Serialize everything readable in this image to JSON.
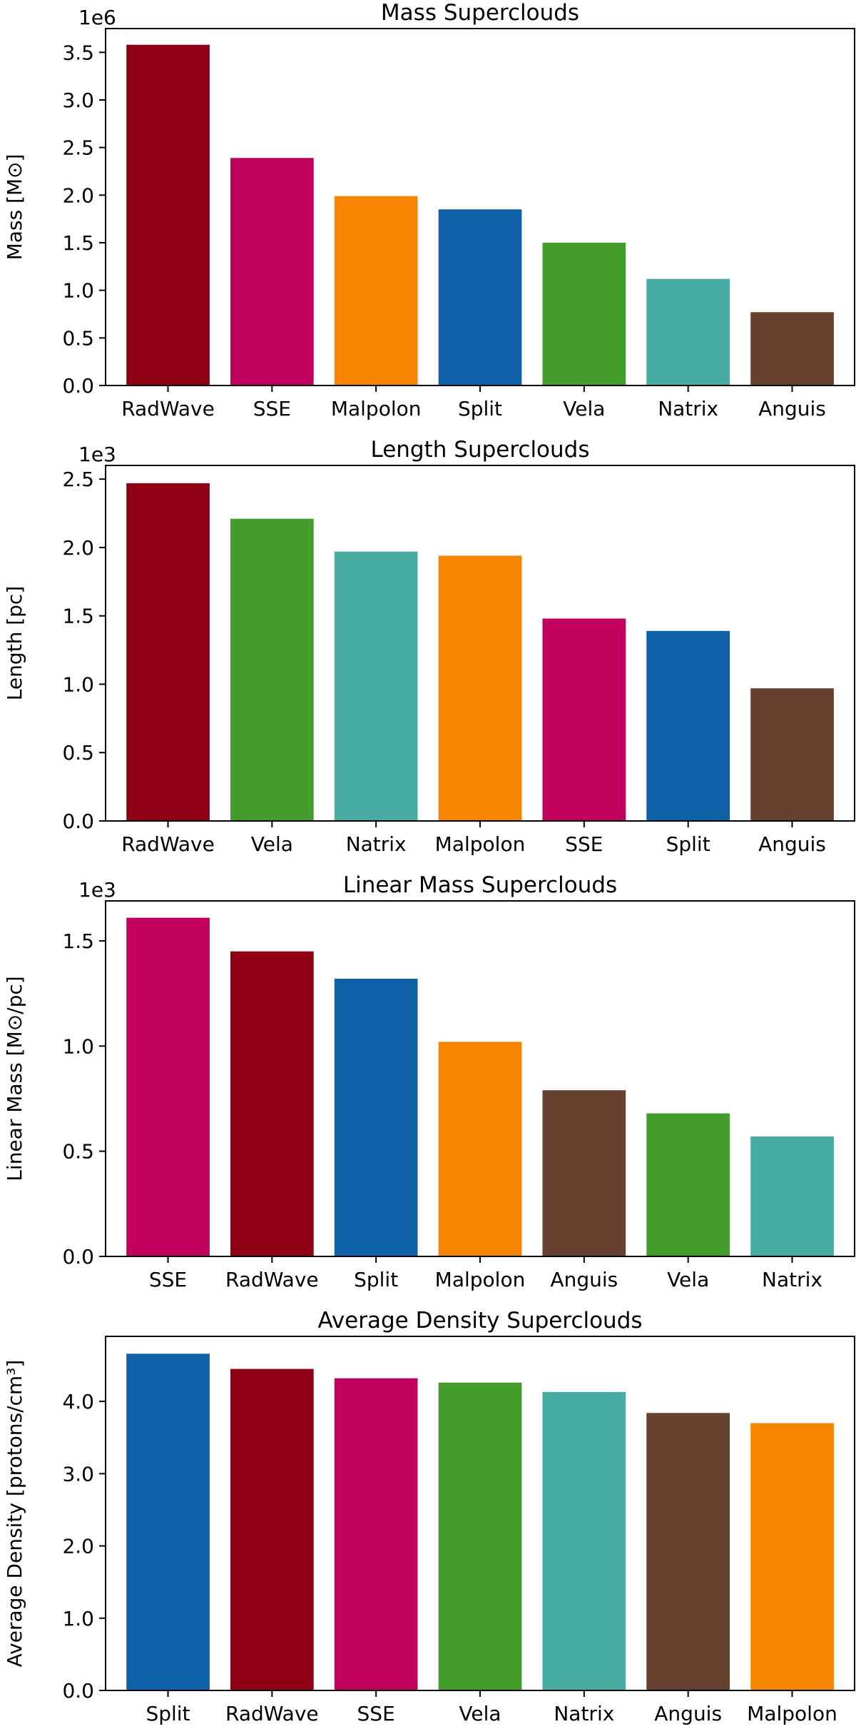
{
  "chart_data": [
    {
      "type": "bar",
      "title": "Mass Superclouds",
      "ylabel": "Mass [M⊙]",
      "xlabel": "",
      "offset_text": "1e6",
      "ylim": [
        0,
        3.75
      ],
      "yticks": [
        0.0,
        0.5,
        1.0,
        1.5,
        2.0,
        2.5,
        3.0,
        3.5
      ],
      "ytick_labels": [
        "0.0",
        "0.5",
        "1.0",
        "1.5",
        "2.0",
        "2.5",
        "3.0",
        "3.5"
      ],
      "categories": [
        "RadWave",
        "SSE",
        "Malpolon",
        "Split",
        "Vela",
        "Natrix",
        "Anguis"
      ],
      "values": [
        3.58,
        2.39,
        1.99,
        1.85,
        1.5,
        1.12,
        0.77
      ],
      "colors": [
        "#8f0015",
        "#c0005c",
        "#f78500",
        "#0e61a6",
        "#439c2c",
        "#49aca3",
        "#664130"
      ]
    },
    {
      "type": "bar",
      "title": "Length Superclouds",
      "ylabel": "Length [pc]",
      "xlabel": "",
      "offset_text": "1e3",
      "ylim": [
        0,
        2.6
      ],
      "yticks": [
        0.0,
        0.5,
        1.0,
        1.5,
        2.0,
        2.5
      ],
      "ytick_labels": [
        "0.0",
        "0.5",
        "1.0",
        "1.5",
        "2.0",
        "2.5"
      ],
      "categories": [
        "RadWave",
        "Vela",
        "Natrix",
        "Malpolon",
        "SSE",
        "Split",
        "Anguis"
      ],
      "values": [
        2.47,
        2.21,
        1.97,
        1.94,
        1.48,
        1.39,
        0.97
      ],
      "colors": [
        "#8f0015",
        "#439c2c",
        "#49aca3",
        "#f78500",
        "#c0005c",
        "#0e61a6",
        "#664130"
      ]
    },
    {
      "type": "bar",
      "title": "Linear Mass Superclouds",
      "ylabel": "Linear Mass [M⊙/pc]",
      "xlabel": "",
      "offset_text": "1e3",
      "ylim": [
        0,
        1.69
      ],
      "yticks": [
        0.0,
        0.5,
        1.0,
        1.5
      ],
      "ytick_labels": [
        "0.0",
        "0.5",
        "1.0",
        "1.5"
      ],
      "categories": [
        "SSE",
        "RadWave",
        "Split",
        "Malpolon",
        "Anguis",
        "Vela",
        "Natrix"
      ],
      "values": [
        1.61,
        1.45,
        1.32,
        1.02,
        0.79,
        0.68,
        0.57
      ],
      "colors": [
        "#c0005c",
        "#8f0015",
        "#0e61a6",
        "#f78500",
        "#664130",
        "#439c2c",
        "#49aca3"
      ]
    },
    {
      "type": "bar",
      "title": "Average Density Superclouds",
      "ylabel": "Average Density [protons/cm³]",
      "xlabel": "",
      "offset_text": "",
      "ylim": [
        0,
        4.9
      ],
      "yticks": [
        0.0,
        1.0,
        2.0,
        3.0,
        4.0
      ],
      "ytick_labels": [
        "0.0",
        "1.0",
        "2.0",
        "3.0",
        "4.0"
      ],
      "categories": [
        "Split",
        "RadWave",
        "SSE",
        "Vela",
        "Natrix",
        "Anguis",
        "Malpolon"
      ],
      "values": [
        4.66,
        4.45,
        4.32,
        4.26,
        4.13,
        3.84,
        3.7
      ],
      "colors": [
        "#0e61a6",
        "#8f0015",
        "#c0005c",
        "#439c2c",
        "#49aca3",
        "#664130",
        "#f78500"
      ]
    }
  ]
}
